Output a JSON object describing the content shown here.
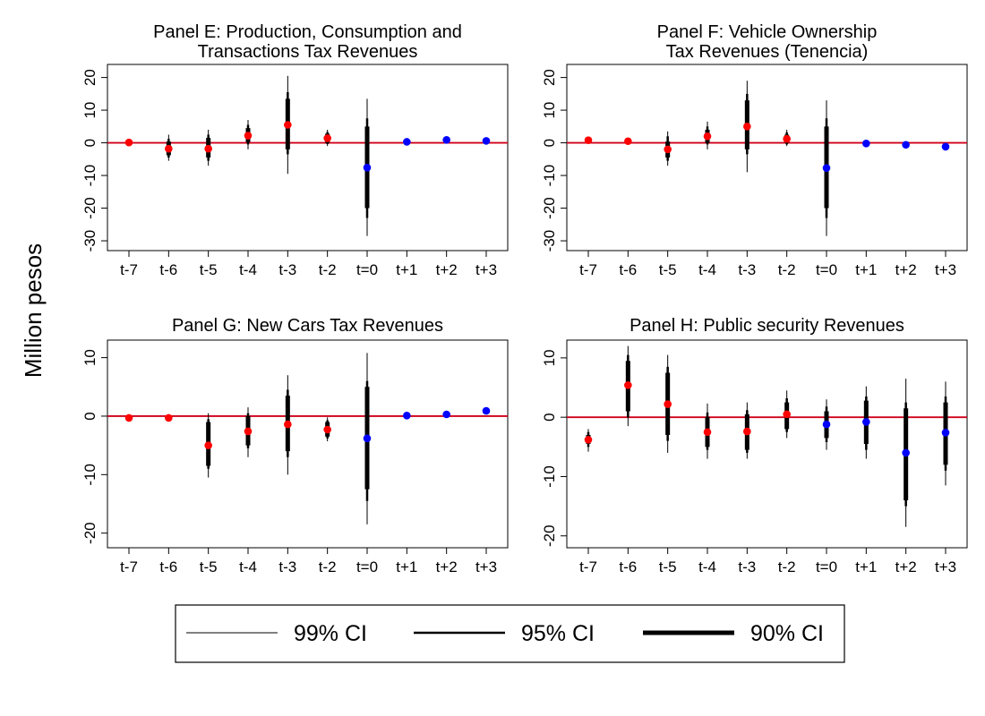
{
  "ylabel": "Million pesos",
  "legend": {
    "items": [
      {
        "label": "99% CI",
        "width": 1
      },
      {
        "label": "95% CI",
        "width": 2.5
      },
      {
        "label": "90% CI",
        "width": 5
      }
    ]
  },
  "colors": {
    "pre_period_point": "#ff0000",
    "post_period_point": "#0000ff",
    "zero_line": "#d0001a",
    "ci": "#000000"
  },
  "chart_data": [
    {
      "type": "scatter",
      "title": [
        "Panel E: Production, Consumption and",
        "Transactions Tax Revenues"
      ],
      "categories": [
        "t-7",
        "t-6",
        "t-5",
        "t-4",
        "t-3",
        "t-2",
        "t=0",
        "t+1",
        "t+2",
        "t+3"
      ],
      "ylim": [
        -33,
        24
      ],
      "yticks": [
        20,
        10,
        0,
        -10,
        -20,
        -30
      ],
      "zero_line": 0,
      "estimates": [
        0.1,
        -1.8,
        -1.8,
        2.2,
        5.5,
        1.4,
        -7.6,
        0.3,
        0.9,
        0.6
      ],
      "ci90": [
        [
          0,
          0
        ],
        [
          -3.8,
          0.4
        ],
        [
          -4.5,
          1.5
        ],
        [
          0.2,
          4.5
        ],
        [
          -2,
          13.5
        ],
        [
          0,
          2.8
        ],
        [
          -20,
          5
        ],
        [
          0,
          0
        ],
        [
          0,
          0
        ],
        [
          0,
          0
        ]
      ],
      "ci95": [
        [
          0,
          0
        ],
        [
          -4.5,
          1.2
        ],
        [
          -5.5,
          2.5
        ],
        [
          -0.5,
          5.5
        ],
        [
          -3.5,
          15.5
        ],
        [
          -0.4,
          3.3
        ],
        [
          -23,
          7.5
        ],
        [
          0,
          0
        ],
        [
          0,
          0
        ],
        [
          0,
          0
        ]
      ],
      "ci99": [
        [
          0,
          0
        ],
        [
          -5.5,
          2.5
        ],
        [
          -7,
          4
        ],
        [
          -2,
          7
        ],
        [
          -9.5,
          20.5
        ],
        [
          -1,
          4
        ],
        [
          -28.5,
          13.5
        ],
        [
          0,
          0
        ],
        [
          0.5,
          1.8
        ],
        [
          0,
          0
        ]
      ],
      "point_period": [
        "pre",
        "pre",
        "pre",
        "pre",
        "pre",
        "pre",
        "post",
        "post",
        "post",
        "post"
      ]
    },
    {
      "type": "scatter",
      "title": [
        "Panel F: Vehicle Ownership",
        "Tax Revenues (Tenencia)"
      ],
      "categories": [
        "t-7",
        "t-6",
        "t-5",
        "t-4",
        "t-3",
        "t-2",
        "t=0",
        "t+1",
        "t+2",
        "t+3"
      ],
      "ylim": [
        -33,
        24
      ],
      "yticks": [
        20,
        10,
        0,
        -10,
        -20,
        -30
      ],
      "zero_line": 0,
      "estimates": [
        0.8,
        0.5,
        -2.0,
        2.0,
        5.0,
        1.2,
        -7.7,
        -0.2,
        -0.6,
        -1.2
      ],
      "ci90": [
        [
          0,
          0
        ],
        [
          0,
          0
        ],
        [
          -4.5,
          0.4
        ],
        [
          0,
          4
        ],
        [
          -2,
          13
        ],
        [
          0,
          2.5
        ],
        [
          -20,
          5
        ],
        [
          0,
          0
        ],
        [
          0,
          0
        ],
        [
          0,
          0
        ]
      ],
      "ci95": [
        [
          0,
          0
        ],
        [
          0,
          0
        ],
        [
          -5.5,
          2
        ],
        [
          -0.5,
          5
        ],
        [
          -3.5,
          15
        ],
        [
          -0.5,
          3.2
        ],
        [
          -23,
          7.5
        ],
        [
          0,
          0
        ],
        [
          0,
          0
        ],
        [
          0,
          0
        ]
      ],
      "ci99": [
        [
          0,
          0
        ],
        [
          0,
          0
        ],
        [
          -7,
          3.5
        ],
        [
          -2,
          6.5
        ],
        [
          -9,
          19
        ],
        [
          -1,
          4
        ],
        [
          -28.5,
          13
        ],
        [
          0,
          0
        ],
        [
          0,
          0
        ],
        [
          -2,
          -0.3
        ]
      ],
      "point_period": [
        "pre",
        "pre",
        "pre",
        "pre",
        "pre",
        "pre",
        "post",
        "post",
        "post",
        "post"
      ]
    },
    {
      "type": "scatter",
      "title": [
        "Panel G: New Cars Tax Revenues"
      ],
      "categories": [
        "t-7",
        "t-6",
        "t-5",
        "t-4",
        "t-3",
        "t-2",
        "t=0",
        "t+1",
        "t+2",
        "t+3"
      ],
      "ylim": [
        -22.5,
        13
      ],
      "yticks": [
        10,
        0,
        -10,
        -20
      ],
      "zero_line": 0,
      "estimates": [
        -0.3,
        -0.3,
        -5.0,
        -2.6,
        -1.4,
        -2.3,
        -3.8,
        0.1,
        0.3,
        0.9
      ],
      "ci90": [
        [
          0,
          0
        ],
        [
          0,
          0
        ],
        [
          -8.5,
          -1
        ],
        [
          -5,
          0
        ],
        [
          -6,
          3.5
        ],
        [
          -3.5,
          -1
        ],
        [
          -12.5,
          5
        ],
        [
          0,
          0
        ],
        [
          0,
          0
        ],
        [
          0,
          0
        ]
      ],
      "ci95": [
        [
          0,
          0
        ],
        [
          0,
          0
        ],
        [
          -9,
          -0.5
        ],
        [
          -5.5,
          0.5
        ],
        [
          -7,
          4.5
        ],
        [
          -3.8,
          -0.7
        ],
        [
          -14.5,
          6
        ],
        [
          0,
          0
        ],
        [
          0,
          0
        ],
        [
          0,
          0
        ]
      ],
      "ci99": [
        [
          0,
          0
        ],
        [
          0,
          0
        ],
        [
          -10.5,
          0.5
        ],
        [
          -7,
          1.5
        ],
        [
          -10,
          7
        ],
        [
          -4.3,
          -0.2
        ],
        [
          -18.5,
          10.8
        ],
        [
          0,
          0
        ],
        [
          0,
          0
        ],
        [
          0,
          0
        ]
      ],
      "point_period": [
        "pre",
        "pre",
        "pre",
        "pre",
        "pre",
        "pre",
        "post",
        "post",
        "post",
        "post"
      ]
    },
    {
      "type": "scatter",
      "title": [
        "Panel H: Public security Revenues"
      ],
      "categories": [
        "t-7",
        "t-6",
        "t-5",
        "t-4",
        "t-3",
        "t-2",
        "t=0",
        "t+1",
        "t+2",
        "t+3"
      ],
      "ylim": [
        -22,
        13
      ],
      "yticks": [
        10,
        0,
        -10,
        -20
      ],
      "zero_line": 0,
      "estimates": [
        -3.8,
        5.4,
        2.2,
        -2.5,
        -2.4,
        0.5,
        -1.2,
        -0.8,
        -6.0,
        -2.6
      ],
      "ci90": [
        [
          -4.5,
          -3
        ],
        [
          1,
          9.5
        ],
        [
          -3,
          7.5
        ],
        [
          -5,
          0
        ],
        [
          -5.5,
          0.5
        ],
        [
          -2,
          2.5
        ],
        [
          -3.5,
          1
        ],
        [
          -4.5,
          2.8
        ],
        [
          -14,
          1.5
        ],
        [
          -8,
          2.5
        ]
      ],
      "ci95": [
        [
          -5,
          -2.5
        ],
        [
          0,
          10.5
        ],
        [
          -4,
          8.5
        ],
        [
          -5.5,
          0.8
        ],
        [
          -6,
          1.2
        ],
        [
          -2.5,
          3.2
        ],
        [
          -4.2,
          1.8
        ],
        [
          -5.5,
          3.5
        ],
        [
          -15,
          2.5
        ],
        [
          -9,
          3.5
        ]
      ],
      "ci99": [
        [
          -5.8,
          -2
        ],
        [
          -1.5,
          12
        ],
        [
          -6,
          10.5
        ],
        [
          -7,
          2.3
        ],
        [
          -7,
          2.5
        ],
        [
          -3.5,
          4.5
        ],
        [
          -5.5,
          3
        ],
        [
          -7,
          5.2
        ],
        [
          -18.5,
          6.5
        ],
        [
          -11.5,
          6
        ]
      ],
      "point_period": [
        "pre",
        "pre",
        "pre",
        "pre",
        "pre",
        "pre",
        "post",
        "post",
        "post",
        "post"
      ]
    }
  ]
}
